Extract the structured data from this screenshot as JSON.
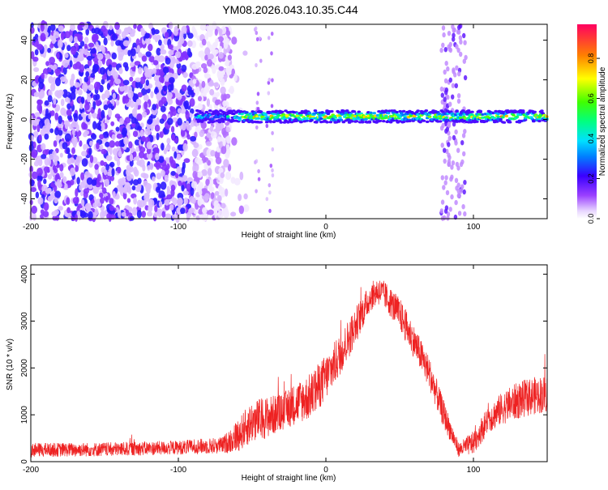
{
  "title": "YM08.2026.043.10.35.C44",
  "chart_data": [
    {
      "type": "heatmap",
      "title": "YM08.2026.043.10.35.C44",
      "xlabel": "Height of straight line (km)",
      "ylabel": "Frequency (Hz)",
      "xlim": [
        -200,
        150
      ],
      "ylim": [
        -50,
        48
      ],
      "xticks": [
        -200,
        -100,
        0,
        100
      ],
      "yticks": [
        -40,
        -20,
        0,
        20,
        40
      ],
      "colorbar": {
        "label": "Normalized spectral amplitude",
        "range": [
          0,
          0.97
        ],
        "ticks": [
          0,
          0.2,
          0.4,
          0.6,
          0.8
        ],
        "tick_labels": [
          "0.0",
          "0.2",
          "0.4",
          "0.6",
          "0.8"
        ]
      },
      "features": [
        {
          "name": "broadband noise region",
          "x_range": [
            -200,
            -65
          ],
          "freq_range": [
            -50,
            48
          ],
          "amplitude": 0.12
        },
        {
          "name": "narrow band near 0 Hz",
          "x_range": [
            -88,
            150
          ],
          "center_freq": 1.5,
          "half_width_hz": 3,
          "peak_amplitude": 0.9
        },
        {
          "name": "vertical noise streak",
          "x_range": [
            78,
            95
          ],
          "freq_range": [
            -50,
            48
          ],
          "amplitude": 0.1
        }
      ]
    },
    {
      "type": "line",
      "xlabel": "Height of straight line (km)",
      "ylabel": "SNR (10 * v/v)",
      "xlim": [
        -200,
        150
      ],
      "ylim": [
        0,
        4200
      ],
      "xticks": [
        -200,
        -100,
        0,
        100
      ],
      "yticks": [
        0,
        1000,
        2000,
        3000,
        4000
      ],
      "series": [
        {
          "name": "SNR",
          "color": "#ee2222",
          "envelope_x": [
            -200,
            -150,
            -100,
            -70,
            -60,
            -50,
            -40,
            -30,
            -20,
            -10,
            0,
            10,
            20,
            30,
            35,
            40,
            50,
            60,
            70,
            80,
            90,
            100,
            110,
            120,
            130,
            140,
            150
          ],
          "envelope_mean": [
            250,
            260,
            300,
            350,
            550,
            850,
            950,
            1050,
            1250,
            1400,
            1800,
            2300,
            2900,
            3500,
            3650,
            3550,
            3150,
            2550,
            1900,
            1000,
            250,
            400,
            900,
            1150,
            1300,
            1400,
            1450
          ],
          "envelope_spread": [
            150,
            150,
            150,
            180,
            350,
            450,
            450,
            400,
            450,
            500,
            500,
            450,
            400,
            300,
            300,
            300,
            350,
            350,
            350,
            300,
            150,
            250,
            300,
            350,
            400,
            400,
            400
          ]
        }
      ]
    }
  ]
}
